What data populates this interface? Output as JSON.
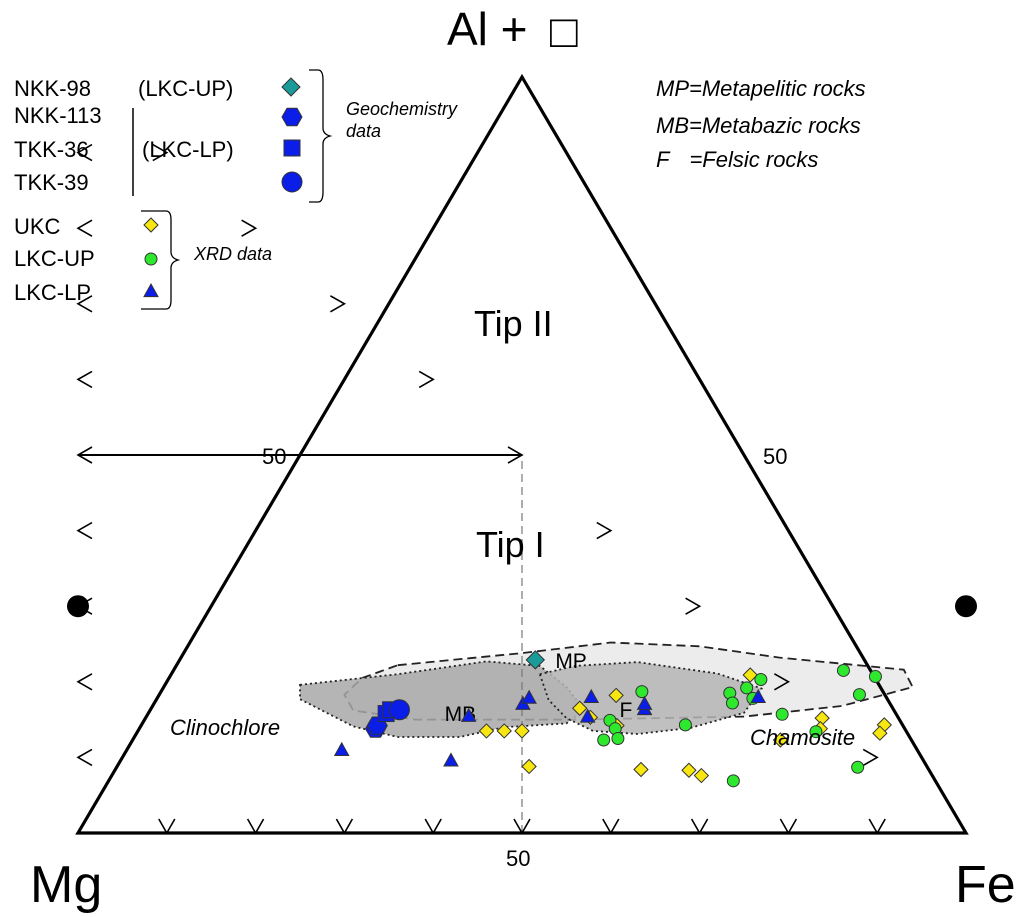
{
  "chart_data": {
    "type": "scatter",
    "subtype": "ternary",
    "vertices": {
      "top": "Al +",
      "top_symbol": "□",
      "left": "Mg",
      "right": "Fe"
    },
    "scale": {
      "fe_axis": "Fe fraction along base (0 = Mg, 1 = Fe)",
      "al_axis": "Al fraction (0 = base, 1 = apex)"
    },
    "tick_label": "50",
    "fields": [
      {
        "name": "Tip II",
        "al_range": [
          0.5,
          1.0
        ]
      },
      {
        "name": "Tip I",
        "al_range": [
          0.0,
          0.5
        ]
      }
    ],
    "end_members": [
      {
        "name": "Clinochlore",
        "fe": 0.0,
        "al": 0.3
      },
      {
        "name": "Chamosite",
        "fe": 1.0,
        "al": 0.3
      }
    ],
    "regions": [
      {
        "code": "MP",
        "label": "MP",
        "fill": "#e9e9e9",
        "stroke": "dashed",
        "outline": [
          [
            0.36,
            0.222
          ],
          [
            0.5,
            0.238
          ],
          [
            0.6,
            0.252
          ],
          [
            0.7,
            0.247
          ],
          [
            0.79,
            0.232
          ],
          [
            0.93,
            0.216
          ],
          [
            0.94,
            0.193
          ],
          [
            0.86,
            0.168
          ],
          [
            0.75,
            0.154
          ],
          [
            0.56,
            0.15
          ],
          [
            0.38,
            0.15
          ],
          [
            0.31,
            0.162
          ],
          [
            0.3,
            0.183
          ],
          [
            0.32,
            0.205
          ]
        ]
      },
      {
        "code": "MB",
        "label": "MB",
        "fill": "#a8a8a8",
        "stroke": "dotted",
        "outline": [
          [
            0.25,
            0.196
          ],
          [
            0.36,
            0.21
          ],
          [
            0.46,
            0.227
          ],
          [
            0.52,
            0.221
          ],
          [
            0.55,
            0.193
          ],
          [
            0.57,
            0.163
          ],
          [
            0.55,
            0.145
          ],
          [
            0.48,
            0.14
          ],
          [
            0.43,
            0.127
          ],
          [
            0.36,
            0.127
          ],
          [
            0.31,
            0.141
          ],
          [
            0.25,
            0.177
          ]
        ]
      },
      {
        "code": "F",
        "label": "F",
        "fill": "#b5b5b5",
        "stroke": "dotted",
        "outline": [
          [
            0.52,
            0.21
          ],
          [
            0.56,
            0.221
          ],
          [
            0.63,
            0.226
          ],
          [
            0.72,
            0.211
          ],
          [
            0.77,
            0.191
          ],
          [
            0.75,
            0.159
          ],
          [
            0.69,
            0.139
          ],
          [
            0.63,
            0.131
          ],
          [
            0.58,
            0.135
          ],
          [
            0.55,
            0.152
          ],
          [
            0.53,
            0.176
          ]
        ]
      }
    ],
    "series": [
      {
        "name": "NKK-98 (LKC-UP)",
        "group": "Geochemistry data",
        "marker": "diamond",
        "color": "#1b9a9a",
        "size": 18,
        "points": [
          [
            0.515,
            0.229
          ]
        ]
      },
      {
        "name": "NKK-113 (LKC-LP)",
        "group": "Geochemistry data",
        "marker": "hexagon",
        "color": "#0a1ee8",
        "size": 20,
        "points": [
          [
            0.335,
            0.138
          ],
          [
            0.337,
            0.142
          ]
        ]
      },
      {
        "name": "TKK-36 (LKC-LP)",
        "group": "Geochemistry data",
        "marker": "square",
        "color": "#0a1ee8",
        "size": 16,
        "points": [
          [
            0.347,
            0.158
          ],
          [
            0.352,
            0.163
          ]
        ]
      },
      {
        "name": "TKK-39 (LKC-LP)",
        "group": "Geochemistry data",
        "marker": "circle",
        "color": "#0a1ee8",
        "size": 20,
        "points": [
          [
            0.362,
            0.163
          ]
        ]
      },
      {
        "name": "UKC",
        "group": "XRD data",
        "marker": "diamond",
        "color": "#f7e60f",
        "size": 14,
        "points": [
          [
            0.46,
            0.135
          ],
          [
            0.48,
            0.135
          ],
          [
            0.5,
            0.135
          ],
          [
            0.508,
            0.088
          ],
          [
            0.565,
            0.165
          ],
          [
            0.577,
            0.153
          ],
          [
            0.607,
            0.142
          ],
          [
            0.606,
            0.182
          ],
          [
            0.634,
            0.084
          ],
          [
            0.702,
            0.076
          ],
          [
            0.688,
            0.083
          ],
          [
            0.757,
            0.209
          ],
          [
            0.838,
            0.152
          ],
          [
            0.836,
            0.138
          ],
          [
            0.791,
            0.123
          ],
          [
            0.908,
            0.143
          ],
          [
            0.903,
            0.132
          ]
        ]
      },
      {
        "name": "LKC-UP",
        "group": "XRD data",
        "marker": "circle",
        "color": "#2ee82e",
        "size": 12,
        "points": [
          [
            0.599,
            0.149
          ],
          [
            0.592,
            0.123
          ],
          [
            0.605,
            0.138
          ],
          [
            0.608,
            0.125
          ],
          [
            0.635,
            0.187
          ],
          [
            0.684,
            0.143
          ],
          [
            0.734,
            0.185
          ],
          [
            0.737,
            0.172
          ],
          [
            0.753,
            0.192
          ],
          [
            0.769,
            0.203
          ],
          [
            0.76,
            0.178
          ],
          [
            0.738,
            0.069
          ],
          [
            0.793,
            0.157
          ],
          [
            0.831,
            0.134
          ],
          [
            0.862,
            0.215
          ],
          [
            0.88,
            0.183
          ],
          [
            0.898,
            0.207
          ],
          [
            0.878,
            0.087
          ]
        ]
      },
      {
        "name": "LKC-LP",
        "group": "XRD data",
        "marker": "triangle",
        "color": "#0a1ee8",
        "size": 14,
        "points": [
          [
            0.44,
            0.155
          ],
          [
            0.501,
            0.171
          ],
          [
            0.508,
            0.179
          ],
          [
            0.578,
            0.18
          ],
          [
            0.574,
            0.154
          ],
          [
            0.638,
            0.164
          ],
          [
            0.638,
            0.171
          ],
          [
            0.766,
            0.18
          ],
          [
            0.297,
            0.11
          ],
          [
            0.42,
            0.096
          ]
        ]
      }
    ]
  },
  "legend": {
    "geochem": {
      "rows": [
        "NKK-98",
        "NKK-113",
        "TKK-36",
        "TKK-39"
      ],
      "up_label": "(LKC-UP)",
      "lp_label": "(LKC-LP)",
      "bracket_line1": "Geochemistry",
      "bracket_line2": "data"
    },
    "xrd": {
      "rows": [
        "UKC",
        "LKC-UP",
        "LKC-LP"
      ],
      "bracket": "XRD data"
    }
  },
  "abbreviations": [
    {
      "code": "MP",
      "text": "=Metapelitic rocks"
    },
    {
      "code": "MB",
      "text": "=Metabazic rocks"
    },
    {
      "code": "F",
      "text": "=Felsic rocks"
    }
  ]
}
